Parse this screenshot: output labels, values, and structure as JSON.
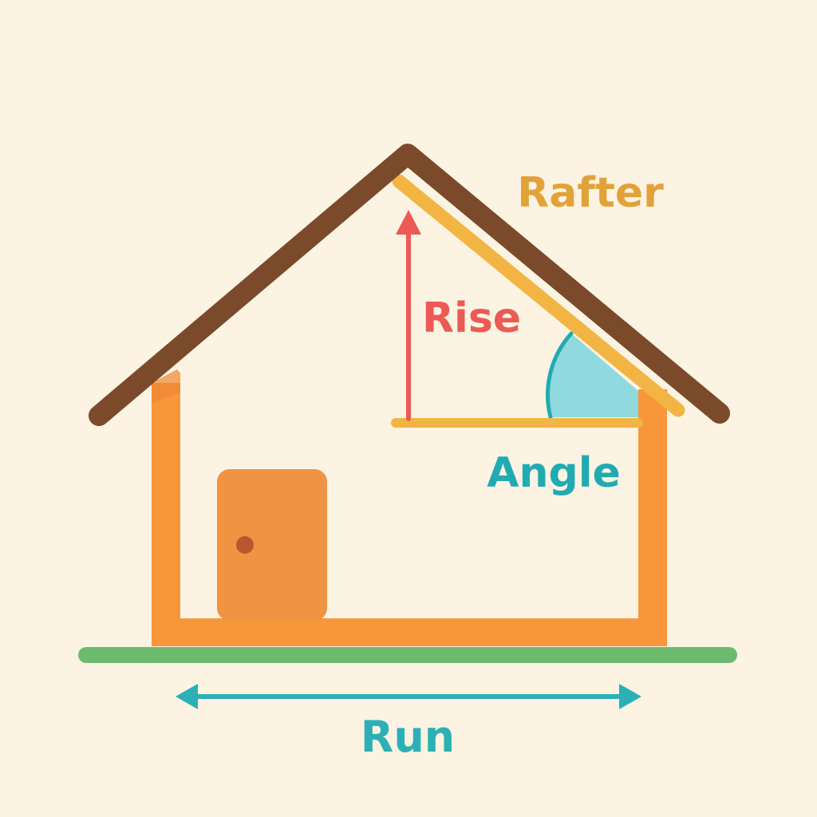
{
  "labels": {
    "rafter": "Rafter",
    "rise": "Rise",
    "angle": "Angle",
    "run": "Run"
  },
  "colors": {
    "background": "#fdf3e2",
    "roof": "#7a4a2a",
    "rafter": "#f2b544",
    "rafter_text": "#e2a23a",
    "walls": "#f8963a",
    "door": "#ee9443",
    "door_knob": "#b9582e",
    "ground": "#6bbb6f",
    "rise": "#ec5a55",
    "angle_fill": "#8fd9df",
    "angle_stroke": "#22aab3",
    "run": "#2bb0b5"
  }
}
